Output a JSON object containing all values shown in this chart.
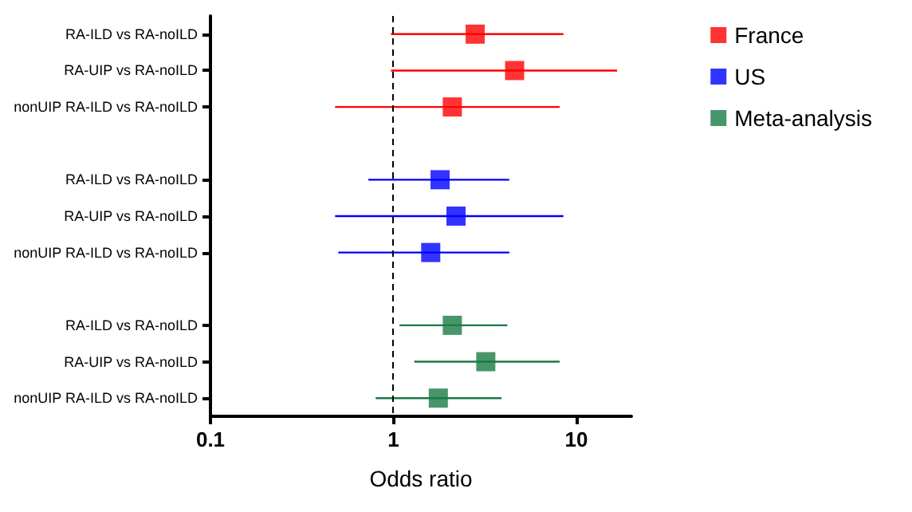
{
  "chart_data": {
    "type": "scatter",
    "orientation": "horizontal",
    "xlabel": "Odds ratio",
    "categories": [
      "RA-ILD vs RA-noILD",
      "RA-UIP vs RA-noILD",
      "nonUIP RA-ILD vs RA-noILD",
      null,
      "RA-ILD vs RA-noILD",
      "RA-UIP vs RA-noILD",
      "nonUIP RA-ILD vs RA-noILD",
      null,
      "RA-ILD vs RA-noILD",
      "RA-UIP vs RA-noILD",
      "nonUIP RA-ILD vs RA-noILD"
    ],
    "series": [
      {
        "name": "France",
        "color": "#ff0000",
        "values": [
          2.8,
          4.6,
          2.1,
          null,
          null,
          null,
          null,
          null,
          null,
          null,
          null
        ],
        "errors": [
          [
            0.97,
            8.5
          ],
          [
            0.97,
            16.7
          ],
          [
            0.48,
            8.1
          ],
          null,
          null,
          null,
          null,
          null,
          null,
          null,
          null
        ]
      },
      {
        "name": "US",
        "color": "#0000ff",
        "values": [
          null,
          null,
          null,
          null,
          1.8,
          2.2,
          1.6,
          null,
          null,
          null,
          null
        ],
        "errors": [
          null,
          null,
          null,
          null,
          [
            0.73,
            4.3
          ],
          [
            0.48,
            8.5
          ],
          [
            0.5,
            4.3
          ],
          null,
          null,
          null,
          null
        ]
      },
      {
        "name": "Meta-analysis",
        "color": "#1a7a45",
        "values": [
          null,
          null,
          null,
          null,
          null,
          null,
          null,
          null,
          2.1,
          3.2,
          1.76
        ],
        "errors": [
          null,
          null,
          null,
          null,
          null,
          null,
          null,
          null,
          [
            1.08,
            4.2
          ],
          [
            1.3,
            8.1
          ],
          [
            0.8,
            3.9
          ]
        ]
      }
    ],
    "log": "x",
    "xlim": [
      0.1,
      20
    ],
    "xticks": [
      0.1,
      1,
      10
    ],
    "ref_lines": [
      {
        "axis": "x",
        "value": 1,
        "color": "#000000",
        "line_style": "dashed"
      }
    ],
    "marker": "square",
    "legend": "right",
    "grid": false
  }
}
